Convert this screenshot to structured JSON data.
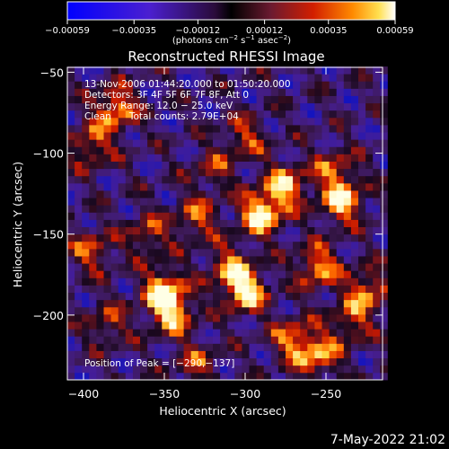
{
  "chart_data": {
    "type": "heatmap",
    "title": "Reconstructed RHESSI Image",
    "xlabel": "Heliocentric X (arcsec)",
    "ylabel": "Heliocentric Y (arcsec)",
    "xlim": [
      -410,
      -215
    ],
    "ylim": [
      -240,
      -47
    ],
    "x_ticks": [
      -400,
      -350,
      -300,
      -250
    ],
    "x_tick_labels": [
      "−400",
      "−350",
      "−300",
      "−250"
    ],
    "y_ticks": [
      -50,
      -100,
      -150,
      -200
    ],
    "y_tick_labels": [
      "−50",
      "−100",
      "−150",
      "−200"
    ],
    "colorbar": {
      "range": [
        -0.00059,
        0.00059
      ],
      "ticks": [
        -0.00059,
        -0.00035,
        -0.00012,
        0.00012,
        0.00035,
        0.00059
      ],
      "tick_labels": [
        "−0.00059",
        "−0.00035",
        "−0.00012",
        "0.00012",
        "0.00035",
        "0.00059"
      ],
      "units_line1": "(photons cm",
      "units_sup1": "−2",
      "units_line2": " s",
      "units_sup2": "−1",
      "units_line3": " asec",
      "units_sup3": "−2",
      "units_line4": ")"
    },
    "annotations": [
      "13-Nov-2006 01:44:20.000 to 01:50:20.000",
      "Detectors: 3F 4F 5F 6F 7F 8F, Att 0",
      "Energy Range: 12.0 − 25.0 keV",
      "Clean      Total counts: 2.79E+04"
    ],
    "peak_label": "Position of Peak = [−290,−137]",
    "hotspots": [
      {
        "x": -290,
        "y": -137,
        "v": 1.0
      },
      {
        "x": -275,
        "y": -120,
        "v": 0.8
      },
      {
        "x": -240,
        "y": -130,
        "v": 0.85
      },
      {
        "x": -245,
        "y": -110,
        "v": 0.55
      },
      {
        "x": -350,
        "y": -185,
        "v": 0.95
      },
      {
        "x": -345,
        "y": -200,
        "v": 0.7
      },
      {
        "x": -300,
        "y": -185,
        "v": 0.95
      },
      {
        "x": -310,
        "y": -170,
        "v": 0.6
      },
      {
        "x": -380,
        "y": -72,
        "v": 0.8
      },
      {
        "x": -395,
        "y": -95,
        "v": 0.6
      },
      {
        "x": -330,
        "y": -140,
        "v": 0.55
      },
      {
        "x": -360,
        "y": -150,
        "v": 0.5
      },
      {
        "x": -395,
        "y": -160,
        "v": 0.55
      },
      {
        "x": -255,
        "y": -170,
        "v": 0.75
      },
      {
        "x": -225,
        "y": -185,
        "v": 0.7
      },
      {
        "x": -235,
        "y": -205,
        "v": 0.5
      },
      {
        "x": -270,
        "y": -215,
        "v": 0.65
      },
      {
        "x": -330,
        "y": -230,
        "v": 0.45
      },
      {
        "x": -300,
        "y": -90,
        "v": 0.5
      },
      {
        "x": -255,
        "y": -225,
        "v": 0.7
      },
      {
        "x": -385,
        "y": -205,
        "v": 0.45
      },
      {
        "x": -320,
        "y": -110,
        "v": 0.4
      }
    ]
  },
  "timestamp": "7-May-2022 21:02"
}
